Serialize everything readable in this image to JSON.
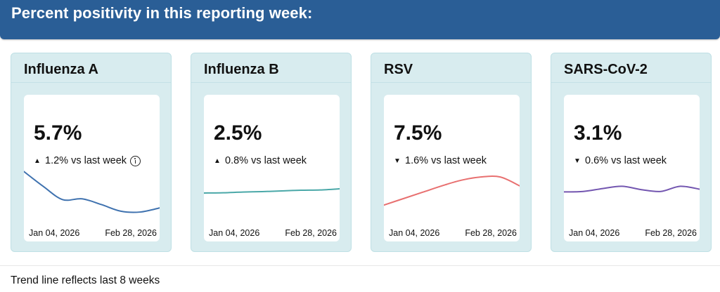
{
  "header": {
    "title": "Percent positivity in this reporting week:"
  },
  "cards": [
    {
      "title": "Influenza A",
      "value": "5.7%",
      "direction": "up",
      "arrow_glyph": "▲",
      "change": "1.2% vs last week",
      "has_info_icon": true,
      "start_date": "Jan 04, 2026",
      "end_date": "Feb 28, 2026",
      "color": "#3f72af",
      "trend": [
        7.0,
        6.1,
        5.3,
        5.35,
        5.0,
        4.6,
        4.55,
        4.8
      ]
    },
    {
      "title": "Influenza B",
      "value": "2.5%",
      "direction": "up",
      "arrow_glyph": "▲",
      "change": "0.8% vs last week",
      "has_info_icon": false,
      "start_date": "Jan 04, 2026",
      "end_date": "Feb 28, 2026",
      "color": "#4aa8a8",
      "trend": [
        2.0,
        2.02,
        2.07,
        2.1,
        2.15,
        2.2,
        2.22,
        2.3
      ]
    },
    {
      "title": "RSV",
      "value": "7.5%",
      "direction": "down",
      "arrow_glyph": "▼",
      "change": "1.6% vs last week",
      "has_info_icon": false,
      "start_date": "Jan 04, 2026",
      "end_date": "Feb 28, 2026",
      "color": "#e87070",
      "trend": [
        6.0,
        6.4,
        6.8,
        7.2,
        7.55,
        7.75,
        7.75,
        7.2
      ]
    },
    {
      "title": "SARS-CoV-2",
      "value": "3.1%",
      "direction": "down",
      "arrow_glyph": "▼",
      "change": "0.6% vs last week",
      "has_info_icon": false,
      "start_date": "Jan 04, 2026",
      "end_date": "Feb 28, 2026",
      "color": "#7356b0",
      "trend": [
        3.3,
        3.32,
        3.45,
        3.55,
        3.4,
        3.32,
        3.55,
        3.42
      ]
    }
  ],
  "footer": {
    "note": "Trend line reflects last 8 weeks"
  }
}
